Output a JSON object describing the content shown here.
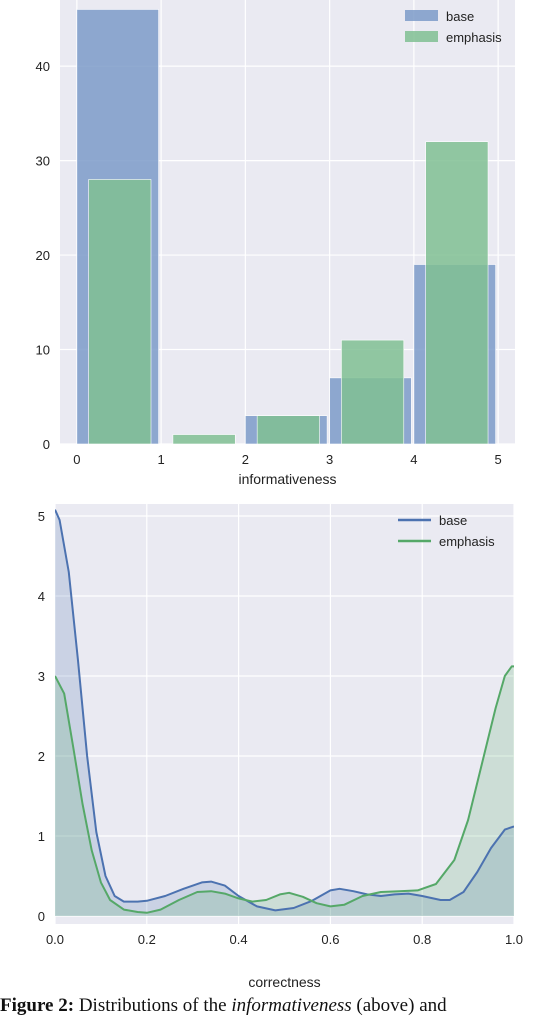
{
  "chart_data": [
    {
      "type": "bar",
      "xlabel": "informativeness",
      "xticks": [
        "0",
        "1",
        "2",
        "3",
        "4",
        "5"
      ],
      "yticks": [
        "0",
        "10",
        "20",
        "30",
        "40"
      ],
      "xlim": [
        -0.2,
        5.2
      ],
      "ylim": [
        0,
        47
      ],
      "grid": true,
      "legend_position": "top-right",
      "series": [
        {
          "name": "base",
          "color": "#7d9bc9",
          "bars": [
            {
              "x0": 0.0,
              "x1": 0.97,
              "value": 46
            },
            {
              "x0": 2.0,
              "x1": 2.97,
              "value": 3
            },
            {
              "x0": 3.0,
              "x1": 3.97,
              "value": 7
            },
            {
              "x0": 4.0,
              "x1": 4.97,
              "value": 19
            }
          ]
        },
        {
          "name": "emphasis",
          "color": "#80bf93",
          "bars": [
            {
              "x0": 0.14,
              "x1": 0.88,
              "value": 28
            },
            {
              "x0": 1.14,
              "x1": 1.88,
              "value": 1
            },
            {
              "x0": 2.14,
              "x1": 2.88,
              "value": 3
            },
            {
              "x0": 3.14,
              "x1": 3.88,
              "value": 11
            },
            {
              "x0": 4.14,
              "x1": 4.88,
              "value": 32
            }
          ]
        }
      ]
    },
    {
      "type": "area",
      "xlabel": "correctness",
      "xticks": [
        "0.0",
        "0.2",
        "0.4",
        "0.6",
        "0.8",
        "1.0"
      ],
      "yticks": [
        "0",
        "1",
        "2",
        "3",
        "4",
        "5"
      ],
      "xlim": [
        0,
        1
      ],
      "ylim": [
        -0.1,
        5.15
      ],
      "grid": true,
      "legend_position": "top-right",
      "series": [
        {
          "name": "base",
          "color": "#4c72b0",
          "points": [
            [
              0.0,
              5.08
            ],
            [
              0.01,
              4.95
            ],
            [
              0.03,
              4.3
            ],
            [
              0.05,
              3.2
            ],
            [
              0.07,
              2.0
            ],
            [
              0.09,
              1.05
            ],
            [
              0.11,
              0.5
            ],
            [
              0.13,
              0.25
            ],
            [
              0.15,
              0.18
            ],
            [
              0.18,
              0.18
            ],
            [
              0.2,
              0.19
            ],
            [
              0.24,
              0.25
            ],
            [
              0.28,
              0.34
            ],
            [
              0.32,
              0.42
            ],
            [
              0.34,
              0.43
            ],
            [
              0.37,
              0.38
            ],
            [
              0.4,
              0.25
            ],
            [
              0.44,
              0.12
            ],
            [
              0.48,
              0.07
            ],
            [
              0.52,
              0.1
            ],
            [
              0.56,
              0.19
            ],
            [
              0.6,
              0.32
            ],
            [
              0.62,
              0.34
            ],
            [
              0.65,
              0.31
            ],
            [
              0.68,
              0.27
            ],
            [
              0.71,
              0.25
            ],
            [
              0.74,
              0.27
            ],
            [
              0.77,
              0.28
            ],
            [
              0.8,
              0.25
            ],
            [
              0.84,
              0.2
            ],
            [
              0.86,
              0.2
            ],
            [
              0.89,
              0.3
            ],
            [
              0.92,
              0.55
            ],
            [
              0.95,
              0.85
            ],
            [
              0.98,
              1.08
            ],
            [
              1.0,
              1.12
            ]
          ]
        },
        {
          "name": "emphasis",
          "color": "#55a868",
          "points": [
            [
              0.0,
              3.0
            ],
            [
              0.02,
              2.78
            ],
            [
              0.04,
              2.1
            ],
            [
              0.06,
              1.4
            ],
            [
              0.08,
              0.82
            ],
            [
              0.1,
              0.42
            ],
            [
              0.12,
              0.2
            ],
            [
              0.15,
              0.08
            ],
            [
              0.18,
              0.05
            ],
            [
              0.2,
              0.04
            ],
            [
              0.23,
              0.08
            ],
            [
              0.27,
              0.2
            ],
            [
              0.31,
              0.3
            ],
            [
              0.34,
              0.31
            ],
            [
              0.37,
              0.28
            ],
            [
              0.4,
              0.22
            ],
            [
              0.43,
              0.18
            ],
            [
              0.46,
              0.2
            ],
            [
              0.49,
              0.27
            ],
            [
              0.51,
              0.29
            ],
            [
              0.54,
              0.24
            ],
            [
              0.57,
              0.16
            ],
            [
              0.6,
              0.12
            ],
            [
              0.63,
              0.14
            ],
            [
              0.67,
              0.25
            ],
            [
              0.71,
              0.3
            ],
            [
              0.75,
              0.31
            ],
            [
              0.79,
              0.32
            ],
            [
              0.83,
              0.4
            ],
            [
              0.87,
              0.7
            ],
            [
              0.9,
              1.2
            ],
            [
              0.93,
              1.9
            ],
            [
              0.96,
              2.6
            ],
            [
              0.98,
              3.0
            ],
            [
              0.995,
              3.12
            ],
            [
              1.0,
              3.12
            ]
          ]
        }
      ]
    }
  ],
  "caption": {
    "label": "Figure 2:",
    "text1": " Distributions of the ",
    "italic1": "informativeness",
    "text2": " (above) and"
  }
}
